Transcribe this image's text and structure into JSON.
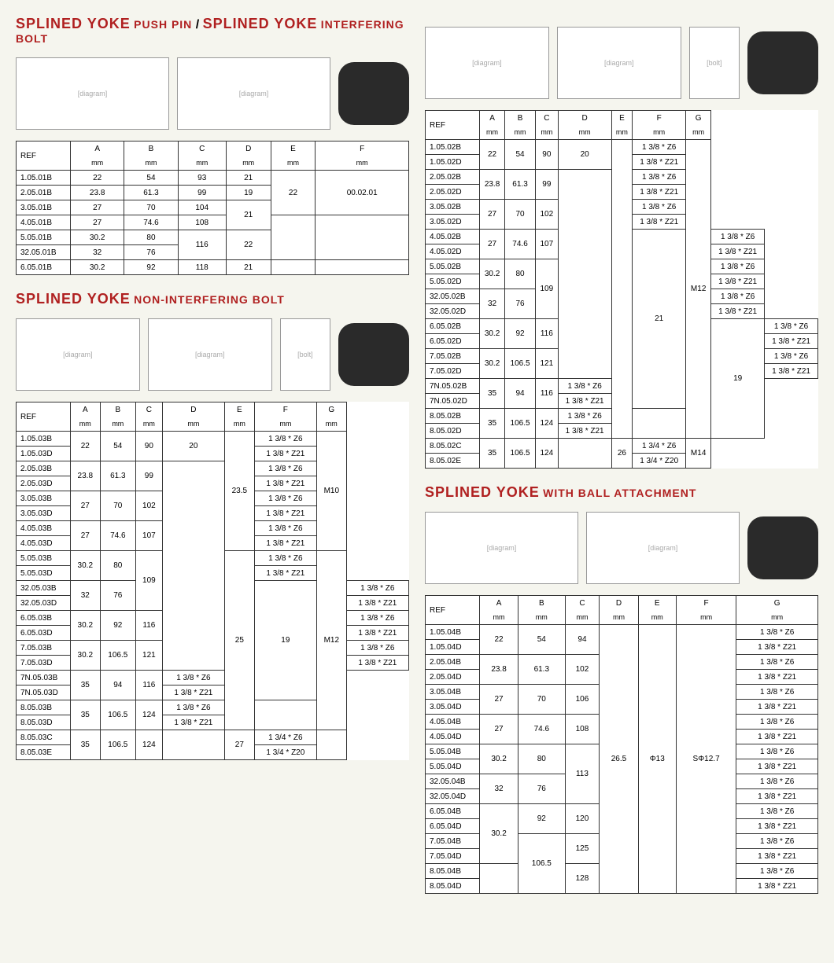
{
  "titles": {
    "t1a": "SPLINED YOKE",
    "t1b": "PUSH PIN",
    "t1c": "SPLINED YOKE",
    "t1d": "INTERFERING BOLT",
    "t2a": "SPLINED YOKE",
    "t2b": "NON-INTERFERING BOLT",
    "t3a": "SPLINED YOKE",
    "t3b": "WITH BALL ATTACHMENT"
  },
  "headers": {
    "ref": "REF",
    "mm": "mm",
    "A": "A",
    "B": "B",
    "C": "C",
    "D": "D",
    "E": "E",
    "F": "F",
    "G": "G"
  },
  "table1": {
    "cols": [
      "REF",
      "A",
      "B",
      "C",
      "D",
      "E",
      "F"
    ],
    "rows": [
      [
        "1.05.01B",
        "22",
        "54",
        "93",
        "21",
        {
          "span": 3,
          "val": "22"
        },
        {
          "span": 3,
          "val": "00.02.01"
        }
      ],
      [
        "2.05.01B",
        "23.8",
        "61.3",
        "99",
        "19",
        null,
        null
      ],
      [
        "3.05.01B",
        "27",
        "70",
        "104",
        {
          "span": 2,
          "val": "21"
        },
        null,
        null
      ],
      [
        "4.05.01B",
        "27",
        "74.6",
        "108",
        null,
        {
          "span": 3,
          "val": ""
        },
        {
          "span": 3,
          "val": ""
        }
      ],
      [
        "5.05.01B",
        "30.2",
        "80",
        {
          "span": 2,
          "val": "116"
        },
        {
          "span": 2,
          "val": "22"
        },
        null,
        null
      ],
      [
        "32.05.01B",
        "32",
        "76",
        null,
        null,
        null,
        null
      ],
      [
        "6.05.01B",
        "30.2",
        "92",
        "118",
        "21",
        "",
        ""
      ]
    ]
  },
  "table2": {
    "cols": [
      "REF",
      "A",
      "B",
      "C",
      "D",
      "E",
      "F",
      "G"
    ],
    "rows": [
      [
        "1.05.02B",
        {
          "span": 2,
          "val": "22"
        },
        {
          "span": 2,
          "val": "54"
        },
        {
          "span": 2,
          "val": "90"
        },
        {
          "span": 2,
          "val": "20"
        },
        {
          "span": 20,
          "val": ""
        },
        "1 3/8 * Z6",
        {
          "span": 20,
          "val": "M12"
        }
      ],
      [
        "1.05.02D",
        null,
        null,
        null,
        null,
        null,
        "1 3/8 * Z21",
        null
      ],
      [
        "2.05.02B",
        {
          "span": 2,
          "val": "23.8"
        },
        {
          "span": 2,
          "val": "61.3"
        },
        {
          "span": 2,
          "val": "99"
        },
        {
          "span": 14,
          "val": ""
        },
        null,
        "1 3/8 * Z6",
        null
      ],
      [
        "2.05.02D",
        null,
        null,
        null,
        null,
        null,
        "1 3/8 * Z21",
        null
      ],
      [
        "3.05.02B",
        {
          "span": 2,
          "val": "27"
        },
        {
          "span": 2,
          "val": "70"
        },
        {
          "span": 2,
          "val": "102"
        },
        null,
        null,
        "1 3/8 * Z6",
        null
      ],
      [
        "3.05.02D",
        null,
        null,
        null,
        null,
        null,
        "1 3/8 * Z21",
        null
      ],
      [
        "4.05.02B",
        {
          "span": 2,
          "val": "27"
        },
        {
          "span": 2,
          "val": "74.6"
        },
        {
          "span": 2,
          "val": "107"
        },
        null,
        {
          "span": 12,
          "val": "21"
        },
        "1 3/8 * Z6",
        null
      ],
      [
        "4.05.02D",
        null,
        null,
        null,
        null,
        null,
        "1 3/8 * Z21",
        null
      ],
      [
        "5.05.02B",
        {
          "span": 2,
          "val": "30.2"
        },
        {
          "span": 2,
          "val": "80"
        },
        {
          "span": 4,
          "val": "109"
        },
        null,
        null,
        "1 3/8 * Z6",
        null
      ],
      [
        "5.05.02D",
        null,
        null,
        null,
        null,
        null,
        "1 3/8 * Z21",
        null
      ],
      [
        "32.05.02B",
        {
          "span": 2,
          "val": "32"
        },
        {
          "span": 2,
          "val": "76"
        },
        null,
        null,
        null,
        "1 3/8 * Z6",
        null
      ],
      [
        "32.05.02D",
        null,
        null,
        null,
        null,
        null,
        "1 3/8 * Z21",
        null
      ],
      [
        "6.05.02B",
        {
          "span": 2,
          "val": "30.2"
        },
        {
          "span": 2,
          "val": "92"
        },
        {
          "span": 2,
          "val": "116"
        },
        {
          "span": 8,
          "val": "19"
        },
        null,
        "1 3/8 * Z6",
        null
      ],
      [
        "6.05.02D",
        null,
        null,
        null,
        null,
        null,
        "1 3/8 * Z21",
        null
      ],
      [
        "7.05.02B",
        {
          "span": 2,
          "val": "30.2"
        },
        {
          "span": 2,
          "val": "106.5"
        },
        {
          "span": 2,
          "val": "121"
        },
        null,
        null,
        "1 3/8 * Z6",
        null
      ],
      [
        "7.05.02D",
        null,
        null,
        null,
        null,
        null,
        "1 3/8 * Z21",
        null
      ],
      [
        "7N.05.02B",
        {
          "span": 2,
          "val": "35"
        },
        {
          "span": 2,
          "val": "94"
        },
        {
          "span": 2,
          "val": "116"
        },
        null,
        null,
        "1 3/8 * Z6",
        null
      ],
      [
        "7N.05.02D",
        null,
        null,
        null,
        null,
        null,
        "1 3/8 * Z21",
        null
      ],
      [
        "8.05.02B",
        {
          "span": 2,
          "val": "35"
        },
        {
          "span": 2,
          "val": "106.5"
        },
        {
          "span": 2,
          "val": "124"
        },
        null,
        null,
        "1 3/8 * Z6",
        null
      ],
      [
        "8.05.02D",
        null,
        null,
        null,
        null,
        null,
        "1 3/8 * Z21",
        null
      ],
      [
        "8.05.02C",
        {
          "span": 2,
          "val": "35"
        },
        {
          "span": 2,
          "val": "106.5"
        },
        {
          "span": 2,
          "val": "124"
        },
        {
          "span": 2,
          "val": ""
        },
        {
          "span": 2,
          "val": "26"
        },
        "1 3/4 * Z6",
        {
          "span": 2,
          "val": "M14"
        }
      ],
      [
        "8.05.02E",
        null,
        null,
        null,
        null,
        null,
        "1 3/4 * Z20",
        null
      ]
    ]
  },
  "table3": {
    "cols": [
      "REF",
      "A",
      "B",
      "C",
      "D",
      "E",
      "F",
      "G"
    ],
    "rows": [
      [
        "1.05.03B",
        {
          "span": 2,
          "val": "22"
        },
        {
          "span": 2,
          "val": "54"
        },
        {
          "span": 2,
          "val": "90"
        },
        {
          "span": 2,
          "val": "20"
        },
        {
          "span": 8,
          "val": "23.5"
        },
        "1 3/8 * Z6",
        {
          "span": 8,
          "val": "M10"
        }
      ],
      [
        "1.05.03D",
        null,
        null,
        null,
        null,
        null,
        "1 3/8 * Z21",
        null
      ],
      [
        "2.05.03B",
        {
          "span": 2,
          "val": "23.8"
        },
        {
          "span": 2,
          "val": "61.3"
        },
        {
          "span": 2,
          "val": "99"
        },
        {
          "span": 14,
          "val": ""
        },
        null,
        "1 3/8 * Z6",
        null
      ],
      [
        "2.05.03D",
        null,
        null,
        null,
        null,
        null,
        "1 3/8 * Z21",
        null
      ],
      [
        "3.05.03B",
        {
          "span": 2,
          "val": "27"
        },
        {
          "span": 2,
          "val": "70"
        },
        {
          "span": 2,
          "val": "102"
        },
        null,
        null,
        "1 3/8 * Z6",
        null
      ],
      [
        "3.05.03D",
        null,
        null,
        null,
        null,
        null,
        "1 3/8 * Z21",
        null
      ],
      [
        "4.05.03B",
        {
          "span": 2,
          "val": "27"
        },
        {
          "span": 2,
          "val": "74.6"
        },
        {
          "span": 2,
          "val": "107"
        },
        null,
        null,
        "1 3/8 * Z6",
        null
      ],
      [
        "4.05.03D",
        null,
        null,
        null,
        null,
        null,
        "1 3/8 * Z21",
        null
      ],
      [
        "5.05.03B",
        {
          "span": 2,
          "val": "30.2"
        },
        {
          "span": 2,
          "val": "80"
        },
        {
          "span": 4,
          "val": "109"
        },
        null,
        {
          "span": 12,
          "val": "25"
        },
        "1 3/8 * Z6",
        {
          "span": 12,
          "val": "M12"
        }
      ],
      [
        "5.05.03D",
        null,
        null,
        null,
        null,
        null,
        "1 3/8 * Z21",
        null
      ],
      [
        "32.05.03B",
        {
          "span": 2,
          "val": "32"
        },
        {
          "span": 2,
          "val": "76"
        },
        null,
        {
          "span": 8,
          "val": "19"
        },
        null,
        "1 3/8 * Z6",
        null
      ],
      [
        "32.05.03D",
        null,
        null,
        null,
        null,
        null,
        "1 3/8 * Z21",
        null
      ],
      [
        "6.05.03B",
        {
          "span": 2,
          "val": "30.2"
        },
        {
          "span": 2,
          "val": "92"
        },
        {
          "span": 2,
          "val": "116"
        },
        null,
        null,
        "1 3/8 * Z6",
        null
      ],
      [
        "6.05.03D",
        null,
        null,
        null,
        null,
        null,
        "1 3/8 * Z21",
        null
      ],
      [
        "7.05.03B",
        {
          "span": 2,
          "val": "30.2"
        },
        {
          "span": 2,
          "val": "106.5"
        },
        {
          "span": 2,
          "val": "121"
        },
        null,
        null,
        "1 3/8 * Z6",
        null
      ],
      [
        "7.05.03D",
        null,
        null,
        null,
        null,
        null,
        "1 3/8 * Z21",
        null
      ],
      [
        "7N.05.03B",
        {
          "span": 2,
          "val": "35"
        },
        {
          "span": 2,
          "val": "94"
        },
        {
          "span": 2,
          "val": "116"
        },
        null,
        null,
        "1 3/8 * Z6",
        null
      ],
      [
        "7N.05.03D",
        null,
        null,
        null,
        null,
        null,
        "1 3/8 * Z21",
        null
      ],
      [
        "8.05.03B",
        {
          "span": 2,
          "val": "35"
        },
        {
          "span": 2,
          "val": "106.5"
        },
        {
          "span": 2,
          "val": "124"
        },
        null,
        null,
        "1 3/8 * Z6",
        null
      ],
      [
        "8.05.03D",
        null,
        null,
        null,
        null,
        null,
        "1 3/8 * Z21",
        null
      ],
      [
        "8.05.03C",
        {
          "span": 2,
          "val": "35"
        },
        {
          "span": 2,
          "val": "106.5"
        },
        {
          "span": 2,
          "val": "124"
        },
        {
          "span": 2,
          "val": ""
        },
        {
          "span": 2,
          "val": "27"
        },
        "1 3/4 * Z6",
        {
          "span": 2,
          "val": ""
        }
      ],
      [
        "8.05.03E",
        null,
        null,
        null,
        null,
        null,
        "1 3/4 * Z20",
        null
      ]
    ]
  },
  "table4": {
    "cols": [
      "REF",
      "A",
      "B",
      "C",
      "D",
      "E",
      "F",
      "G"
    ],
    "rows": [
      [
        "1.05.04B",
        {
          "span": 2,
          "val": "22"
        },
        {
          "span": 2,
          "val": "54"
        },
        {
          "span": 2,
          "val": "94"
        },
        {
          "span": 20,
          "val": "26.5"
        },
        {
          "span": 20,
          "val": "Φ13"
        },
        {
          "span": 20,
          "val": "SΦ12.7"
        },
        "1 3/8 * Z6"
      ],
      [
        "1.05.04D",
        null,
        null,
        null,
        null,
        null,
        null,
        "1 3/8 * Z21"
      ],
      [
        "2.05.04B",
        {
          "span": 2,
          "val": "23.8"
        },
        {
          "span": 2,
          "val": "61.3"
        },
        {
          "span": 2,
          "val": "102"
        },
        null,
        null,
        null,
        "1 3/8 * Z6"
      ],
      [
        "2.05.04D",
        null,
        null,
        null,
        null,
        null,
        null,
        "1 3/8 * Z21"
      ],
      [
        "3.05.04B",
        {
          "span": 2,
          "val": "27"
        },
        {
          "span": 2,
          "val": "70"
        },
        {
          "span": 2,
          "val": "106"
        },
        null,
        null,
        null,
        "1 3/8 * Z6"
      ],
      [
        "3.05.04D",
        null,
        null,
        null,
        null,
        null,
        null,
        "1 3/8 * Z21"
      ],
      [
        "4.05.04B",
        {
          "span": 2,
          "val": "27"
        },
        {
          "span": 2,
          "val": "74.6"
        },
        {
          "span": 2,
          "val": "108"
        },
        null,
        null,
        null,
        "1 3/8 * Z6"
      ],
      [
        "4.05.04D",
        null,
        null,
        null,
        null,
        null,
        null,
        "1 3/8 * Z21"
      ],
      [
        "5.05.04B",
        {
          "span": 2,
          "val": "30.2"
        },
        {
          "span": 2,
          "val": "80"
        },
        {
          "span": 4,
          "val": "113"
        },
        null,
        null,
        null,
        "1 3/8 * Z6"
      ],
      [
        "5.05.04D",
        null,
        null,
        null,
        null,
        null,
        null,
        "1 3/8 * Z21"
      ],
      [
        "32.05.04B",
        {
          "span": 2,
          "val": "32"
        },
        {
          "span": 2,
          "val": "76"
        },
        null,
        null,
        null,
        null,
        "1 3/8 * Z6"
      ],
      [
        "32.05.04D",
        null,
        null,
        null,
        null,
        null,
        null,
        "1 3/8 * Z21"
      ],
      [
        "6.05.04B",
        {
          "span": 4,
          "val": "30.2"
        },
        {
          "span": 2,
          "val": "92"
        },
        {
          "span": 2,
          "val": "120"
        },
        null,
        null,
        null,
        "1 3/8 * Z6"
      ],
      [
        "6.05.04D",
        null,
        null,
        null,
        null,
        null,
        null,
        "1 3/8 * Z21"
      ],
      [
        "7.05.04B",
        null,
        {
          "span": 4,
          "val": "106.5"
        },
        {
          "span": 2,
          "val": "125"
        },
        null,
        null,
        null,
        "1 3/8 * Z6"
      ],
      [
        "7.05.04D",
        null,
        null,
        null,
        null,
        null,
        null,
        "1 3/8 * Z21"
      ],
      [
        "8.05.04B",
        {
          "span": 2,
          "val": ""
        },
        null,
        {
          "span": 2,
          "val": "128"
        },
        null,
        null,
        null,
        "1 3/8 * Z6"
      ],
      [
        "8.05.04D",
        null,
        null,
        null,
        null,
        null,
        null,
        "1 3/8 * Z21"
      ]
    ]
  }
}
